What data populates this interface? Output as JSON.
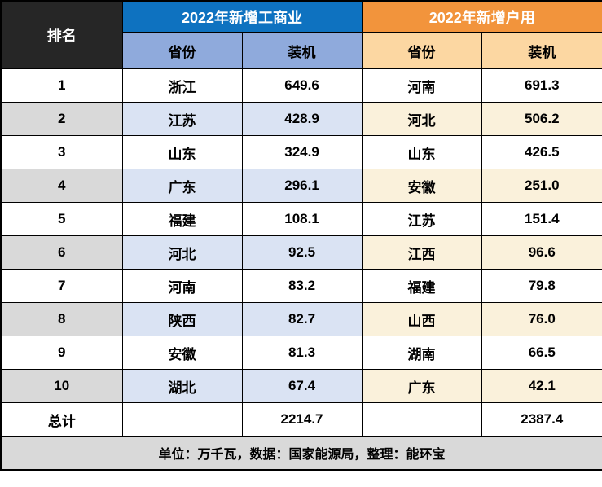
{
  "table": {
    "rank_header": "排名",
    "groups": [
      {
        "title": "2022年新增工商业",
        "col_headers": [
          "省份",
          "装机"
        ],
        "header_color": "#0E72C0",
        "subheader_color": "#8FAADC",
        "stripe_color": "#DAE3F3"
      },
      {
        "title": "2022年新增户用",
        "col_headers": [
          "省份",
          "装机"
        ],
        "header_color": "#F2943C",
        "subheader_color": "#FCD7A2",
        "stripe_color": "#FAF1DB"
      }
    ],
    "rank_header_bg": "#262626",
    "stripe_gray": "#D9D9D9",
    "rows": [
      {
        "rank": "1",
        "left_province": "浙江",
        "left_value": "649.6",
        "right_province": "河南",
        "right_value": "691.3"
      },
      {
        "rank": "2",
        "left_province": "江苏",
        "left_value": "428.9",
        "right_province": "河北",
        "right_value": "506.2"
      },
      {
        "rank": "3",
        "left_province": "山东",
        "left_value": "324.9",
        "right_province": "山东",
        "right_value": "426.5"
      },
      {
        "rank": "4",
        "left_province": "广东",
        "left_value": "296.1",
        "right_province": "安徽",
        "right_value": "251.0"
      },
      {
        "rank": "5",
        "left_province": "福建",
        "left_value": "108.1",
        "right_province": "江苏",
        "right_value": "151.4"
      },
      {
        "rank": "6",
        "left_province": "河北",
        "left_value": "92.5",
        "right_province": "江西",
        "right_value": "96.6"
      },
      {
        "rank": "7",
        "left_province": "河南",
        "left_value": "83.2",
        "right_province": "福建",
        "right_value": "79.8"
      },
      {
        "rank": "8",
        "left_province": "陕西",
        "left_value": "82.7",
        "right_province": "山西",
        "right_value": "76.0"
      },
      {
        "rank": "9",
        "left_province": "安徽",
        "left_value": "81.3",
        "right_province": "湖南",
        "right_value": "66.5"
      },
      {
        "rank": "10",
        "left_province": "湖北",
        "left_value": "67.4",
        "right_province": "广东",
        "right_value": "42.1"
      }
    ],
    "total": {
      "label": "总计",
      "left_value": "2214.7",
      "right_value": "2387.4"
    }
  },
  "footer": {
    "note": "单位：万千瓦，数据：国家能源局，整理：能环宝"
  },
  "chart_data": {
    "type": "table",
    "title": "2022年新增工商业与户用装机省份排名",
    "column_groups": [
      {
        "group": "排名",
        "columns": [
          "排名"
        ]
      },
      {
        "group": "2022年新增工商业",
        "columns": [
          "省份",
          "装机"
        ]
      },
      {
        "group": "2022年新增户用",
        "columns": [
          "省份",
          "装机"
        ]
      }
    ],
    "rows": [
      [
        1,
        "浙江",
        649.6,
        "河南",
        691.3
      ],
      [
        2,
        "江苏",
        428.9,
        "河北",
        506.2
      ],
      [
        3,
        "山东",
        324.9,
        "山东",
        426.5
      ],
      [
        4,
        "广东",
        296.1,
        "安徽",
        251.0
      ],
      [
        5,
        "福建",
        108.1,
        "江苏",
        151.4
      ],
      [
        6,
        "河北",
        92.5,
        "江西",
        96.6
      ],
      [
        7,
        "河南",
        83.2,
        "福建",
        79.8
      ],
      [
        8,
        "陕西",
        82.7,
        "山西",
        76.0
      ],
      [
        9,
        "安徽",
        81.3,
        "湖南",
        66.5
      ],
      [
        10,
        "湖北",
        67.4,
        "广东",
        42.1
      ]
    ],
    "totals": {
      "label": "总计",
      "commercial_total": 2214.7,
      "residential_total": 2387.4
    },
    "unit": "万千瓦",
    "data_source": "国家能源局",
    "compiled_by": "能环宝"
  }
}
